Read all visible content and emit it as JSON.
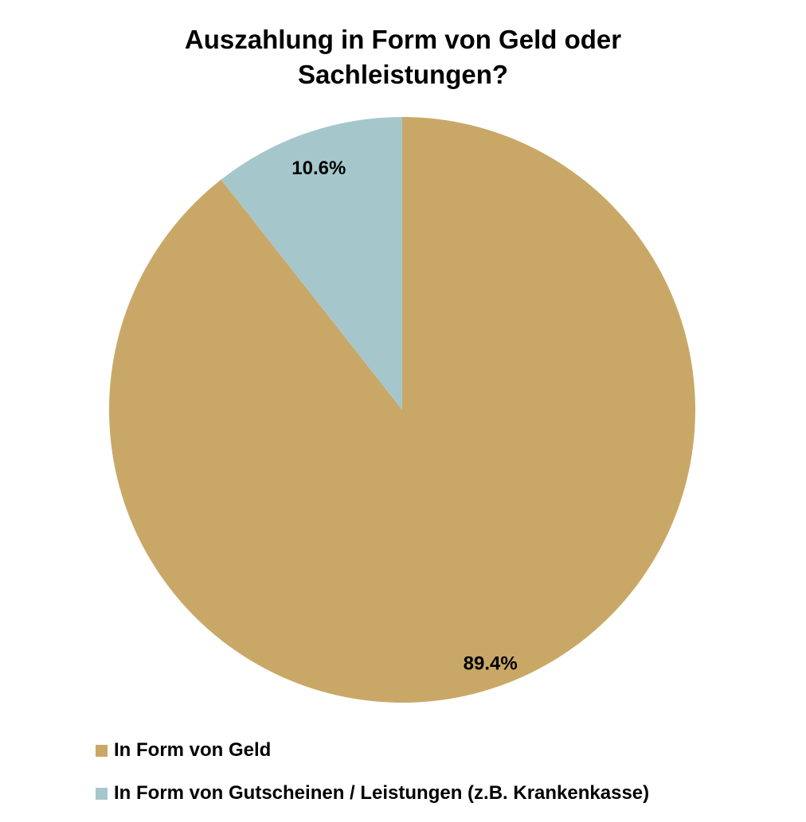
{
  "chart_data": {
    "type": "pie",
    "title_lines": [
      "Auszahlung in Form von Geld oder",
      "Sachleistungen?"
    ],
    "slices": [
      {
        "label": "In Form von Geld",
        "value": 89.4,
        "display": "89.4%",
        "color": "#C9A867"
      },
      {
        "label": "In Form von Gutscheinen / Leistungen (z.B. Krankenkasse)",
        "value": 10.6,
        "display": "10.6%",
        "color": "#A5C7CC"
      }
    ],
    "start_angle_deg": 0,
    "direction": "clockwise",
    "legend_position": "bottom-left"
  }
}
